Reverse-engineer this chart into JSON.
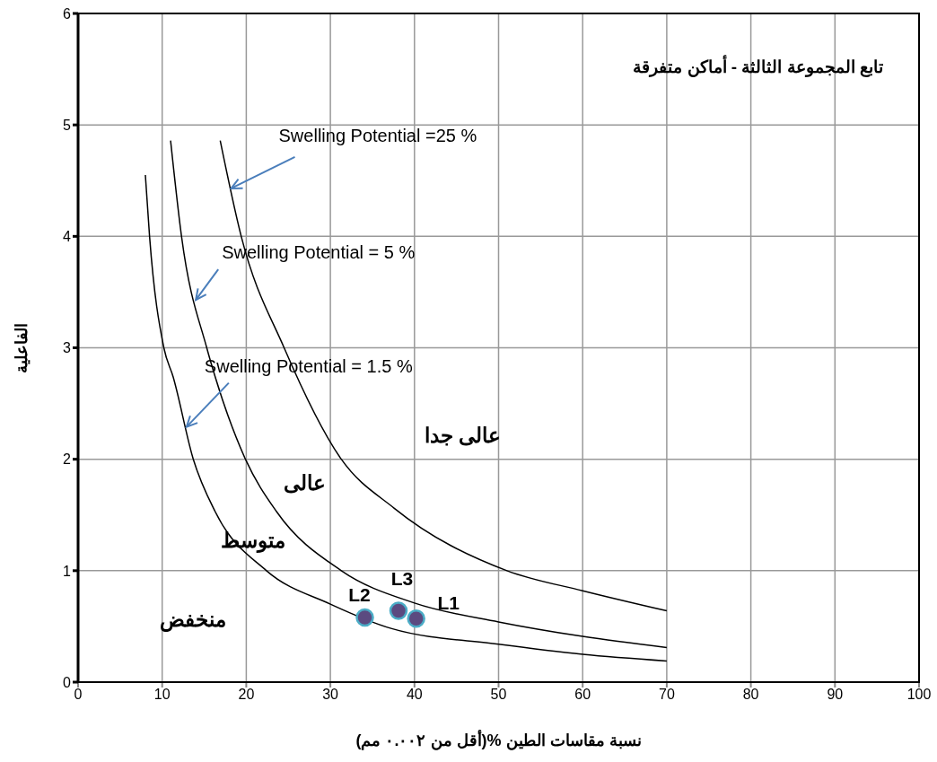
{
  "chart_data": {
    "type": "line",
    "title": "تابع المجموعة الثالثة - أماكن متفرقة",
    "xlabel": "نسبة مقاسات الطين %(أقل من ٠.٠٠٢ مم)",
    "ylabel": "الفاعلية",
    "xlim": [
      0,
      100
    ],
    "ylim": [
      0,
      6
    ],
    "xticks": [
      0,
      10,
      20,
      30,
      40,
      50,
      60,
      70,
      80,
      90,
      100
    ],
    "yticks": [
      0,
      1,
      2,
      3,
      4,
      5,
      6
    ],
    "grid": true,
    "series": [
      {
        "color": "#000000",
        "x": [
          8,
          8.5,
          10.2,
          11.3,
          13.7,
          16.3,
          22.4,
          30,
          37.3,
          50,
          60,
          70
        ],
        "values": [
          4.55,
          4,
          3,
          2.74,
          2,
          1.53,
          1,
          0.7,
          0.48,
          0.34,
          0.25,
          0.19
        ]
      },
      {
        "color": "#000000",
        "x": [
          11,
          12.3,
          15.3,
          16.3,
          19.9,
          23.6,
          31.3,
          40,
          50,
          60,
          70
        ],
        "values": [
          4.86,
          4,
          3,
          2.74,
          2,
          1.53,
          1,
          0.71,
          0.54,
          0.41,
          0.31
        ]
      },
      {
        "color": "#000000",
        "x": [
          16.9,
          19.4,
          24.5,
          31.3,
          37.6,
          51,
          60,
          70
        ],
        "values": [
          4.86,
          4,
          3,
          2,
          1.56,
          1,
          0.82,
          0.64
        ]
      },
      {
        "type": "scatter",
        "color": "#5b4a80",
        "marker": "circle",
        "x": [
          34.1,
          38.1,
          40.2
        ],
        "values": [
          0.58,
          0.64,
          0.57
        ],
        "value_labels": [
          "L2",
          "L3",
          "L1"
        ]
      }
    ],
    "annotations": [
      {
        "text": "Swelling Potential =25 %",
        "x": 18.2,
        "y": 4.43
      },
      {
        "text": "Swelling Potential = 5 %",
        "x": 14,
        "y": 3.43
      },
      {
        "text": "Swelling Potential = 1.5 %",
        "x": 12.9,
        "y": 2.29
      },
      "عالى جدا",
      "عالى",
      "متوسط",
      "منخفض"
    ]
  }
}
